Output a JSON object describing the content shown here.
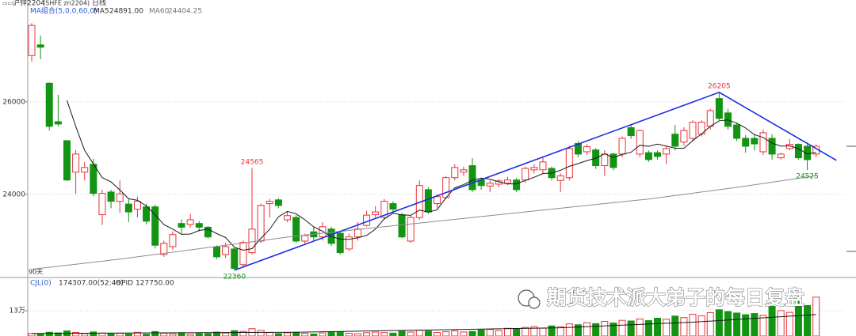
{
  "header": {
    "symbol": "沪锌2204",
    "code": "(SHFE zn2204)",
    "period": "日线"
  },
  "watermark": "期货技术派大弟子的每日复盘",
  "chart_data": [
    {
      "type": "candlestick",
      "indicator_label": "MA组合(5,0,0,60,0)",
      "range_label": "90天",
      "up_color": "#e8333a",
      "down_color": "#139413",
      "ylim": [
        22220,
        28200
      ],
      "yticks": [
        24000,
        26000
      ],
      "grid": true,
      "open": [
        27000,
        27230,
        26400,
        25570,
        25160,
        24480,
        24480,
        24650,
        23560,
        24050,
        23850,
        23790,
        23680,
        23730,
        23730,
        22700,
        22870,
        23370,
        23350,
        23370,
        23290,
        22860,
        22700,
        22820,
        22480,
        22740,
        22990,
        23800,
        23880,
        23450,
        23500,
        22990,
        23190,
        23080,
        23250,
        23160,
        22820,
        23080,
        23330,
        23560,
        23500,
        23800,
        23560,
        22990,
        23500,
        24100,
        23800,
        23930,
        24360,
        24480,
        24620,
        24310,
        24180,
        24220,
        24240,
        24310,
        24310,
        24530,
        24530,
        24560,
        24300,
        24360,
        25100,
        24920,
        24960,
        24620,
        24870,
        24870,
        25440,
        24870,
        24900,
        24900,
        24870,
        25300,
        25130,
        25210,
        25300,
        25470,
        26070,
        25760,
        25500,
        25210,
        25210,
        24920,
        25210,
        24790,
        24990,
        25080,
        25040,
        24870
      ],
      "high": [
        27700,
        27430,
        26420,
        26150,
        25170,
        24960,
        24700,
        24770,
        24100,
        24100,
        24300,
        23900,
        23950,
        23800,
        23780,
        23000,
        23200,
        23460,
        23580,
        23420,
        23310,
        22900,
        22950,
        22850,
        23000,
        24565,
        23800,
        23900,
        23920,
        23620,
        23550,
        23150,
        23300,
        23400,
        23300,
        23180,
        23150,
        23400,
        23650,
        23750,
        23900,
        23850,
        23600,
        23550,
        24300,
        24150,
        24000,
        24400,
        24650,
        24600,
        24780,
        24350,
        24300,
        24330,
        24380,
        24350,
        24600,
        24650,
        24800,
        24600,
        24450,
        25050,
        25150,
        25080,
        25000,
        24950,
        24900,
        25250,
        25500,
        25400,
        24950,
        24950,
        25050,
        25500,
        25450,
        25600,
        25600,
        25850,
        26205,
        25850,
        25550,
        25280,
        25300,
        25400,
        25300,
        24900,
        25200,
        25100,
        25080,
        25080
      ],
      "low": [
        26870,
        26920,
        25380,
        25470,
        24290,
        24010,
        24300,
        23960,
        23340,
        23700,
        23600,
        23400,
        23500,
        23350,
        22830,
        22650,
        22800,
        23150,
        23280,
        23200,
        23050,
        22600,
        22620,
        22360,
        22420,
        22700,
        22950,
        23500,
        23700,
        23400,
        22950,
        22900,
        23000,
        23000,
        22880,
        22700,
        22780,
        23000,
        23300,
        23500,
        23450,
        23600,
        23050,
        22950,
        23450,
        23580,
        23700,
        23900,
        24300,
        24400,
        24050,
        24100,
        24050,
        24150,
        24200,
        24050,
        24250,
        24450,
        24450,
        24300,
        24050,
        24300,
        24800,
        24850,
        24550,
        24400,
        24520,
        24800,
        25200,
        24800,
        24700,
        24750,
        24650,
        24950,
        25050,
        25150,
        25250,
        25400,
        25600,
        25400,
        25150,
        24900,
        24950,
        24850,
        24750,
        24750,
        24950,
        24750,
        24525,
        24800
      ],
      "close": [
        27650,
        27180,
        25470,
        25520,
        24310,
        24870,
        24580,
        24020,
        24020,
        23850,
        24010,
        23620,
        23850,
        23420,
        22900,
        22940,
        23130,
        23290,
        23450,
        23290,
        23080,
        22650,
        22870,
        22400,
        22960,
        23250,
        23760,
        23850,
        23760,
        23540,
        22990,
        23110,
        23080,
        23300,
        22940,
        22740,
        23080,
        23250,
        23550,
        23620,
        23850,
        23680,
        23080,
        23500,
        24190,
        23620,
        23950,
        24360,
        24580,
        24530,
        24100,
        24190,
        24240,
        24290,
        24310,
        24100,
        24560,
        24580,
        24700,
        24360,
        24400,
        24990,
        24870,
        25030,
        24620,
        24870,
        24580,
        25210,
        25270,
        25380,
        24750,
        24820,
        24990,
        25040,
        25380,
        25560,
        25560,
        25810,
        25640,
        25470,
        25210,
        25040,
        25090,
        25330,
        24870,
        24870,
        25080,
        24790,
        24750,
        25040
      ],
      "series": [
        {
          "name": "MA5",
          "color": "#1a1a1a",
          "last": {
            "value": 24891,
            "label": "24891.00"
          },
          "values": [
            null,
            null,
            null,
            null,
            26026,
            25470,
            24950,
            24660,
            24360,
            24268,
            24096,
            23904,
            23870,
            23750,
            23560,
            23346,
            23248,
            23136,
            23142,
            23220,
            23248,
            23152,
            23068,
            22858,
            22792,
            22826,
            23048,
            23244,
            23516,
            23632,
            23580,
            23450,
            23296,
            23204,
            23084,
            23034,
            23028,
            23062,
            23112,
            23248,
            23470,
            23590,
            23556,
            23546,
            23660,
            23614,
            23668,
            23924,
            24140,
            24208,
            24304,
            24352,
            24328,
            24270,
            24226,
            24226,
            24300,
            24368,
            24450,
            24460,
            24520,
            24606,
            24664,
            24730,
            24782,
            24876,
            24794,
            24862,
            24910,
            25062,
            25038,
            25086,
            25042,
            24996,
            24996,
            25158,
            25306,
            25470,
            25590,
            25608,
            25538,
            25434,
            25290,
            25228,
            25108,
            25040,
            25048,
            24988,
            24872,
            24906
          ]
        },
        {
          "name": "MA60",
          "color": "#8c8c8c",
          "last": {
            "value": 24404.25,
            "label": "24404.25"
          },
          "x": [
            0,
            10,
            20,
            30,
            40,
            50,
            60,
            70,
            80,
            89
          ],
          "values": [
            22380,
            22600,
            22850,
            23100,
            23300,
            23500,
            23700,
            23900,
            24150,
            24404.25
          ]
        }
      ],
      "trendline": {
        "color": "#1a2ee6",
        "x": [
          23,
          78,
          91.3
        ],
        "values": [
          22360,
          26205,
          24735
        ]
      },
      "annotations": [
        {
          "x": 25,
          "value": 24565,
          "color": "#e8333a"
        },
        {
          "x": 23,
          "value": 22360,
          "color": "#139413"
        },
        {
          "x": 78,
          "value": 26205,
          "color": "#e8333a"
        },
        {
          "x": 88,
          "value": 24525,
          "color": "#139413"
        }
      ]
    },
    {
      "type": "bar",
      "indicator_label": "CJL(0)",
      "readouts": [
        "174307.00(52:48)",
        "OPID 127750.00"
      ],
      "ylim": [
        110000,
        152000
      ],
      "yticks": [
        {
          "value": 130000,
          "label": "13万"
        }
      ],
      "values": [
        112000,
        111500,
        113000,
        112500,
        114000,
        112800,
        111900,
        113200,
        112400,
        111800,
        112100,
        111600,
        112900,
        111400,
        113500,
        112200,
        111700,
        112600,
        111300,
        112000,
        111900,
        113100,
        112300,
        114200,
        113600,
        115800,
        114400,
        112700,
        111900,
        112500,
        113000,
        112100,
        111600,
        112400,
        112900,
        113300,
        112200,
        111800,
        112600,
        113100,
        112700,
        112300,
        113800,
        113100,
        114600,
        113900,
        112800,
        113400,
        114100,
        113200,
        113600,
        114800,
        115200,
        114300,
        116100,
        115500,
        116800,
        117400,
        116200,
        118000,
        117300,
        119600,
        118900,
        120500,
        119800,
        121600,
        120300,
        122400,
        121900,
        123500,
        122200,
        124100,
        123300,
        125800,
        124600,
        127200,
        126000,
        128500,
        130800,
        129400,
        128200,
        126900,
        127800,
        126400,
        133500,
        130100,
        128700,
        138900,
        134200,
        140800
      ],
      "ma": {
        "color": "#1a1a1a",
        "x": [
          0,
          30,
          60,
          75,
          89
        ],
        "values": [
          112000,
          113000,
          116500,
          121000,
          127000
        ]
      }
    }
  ]
}
